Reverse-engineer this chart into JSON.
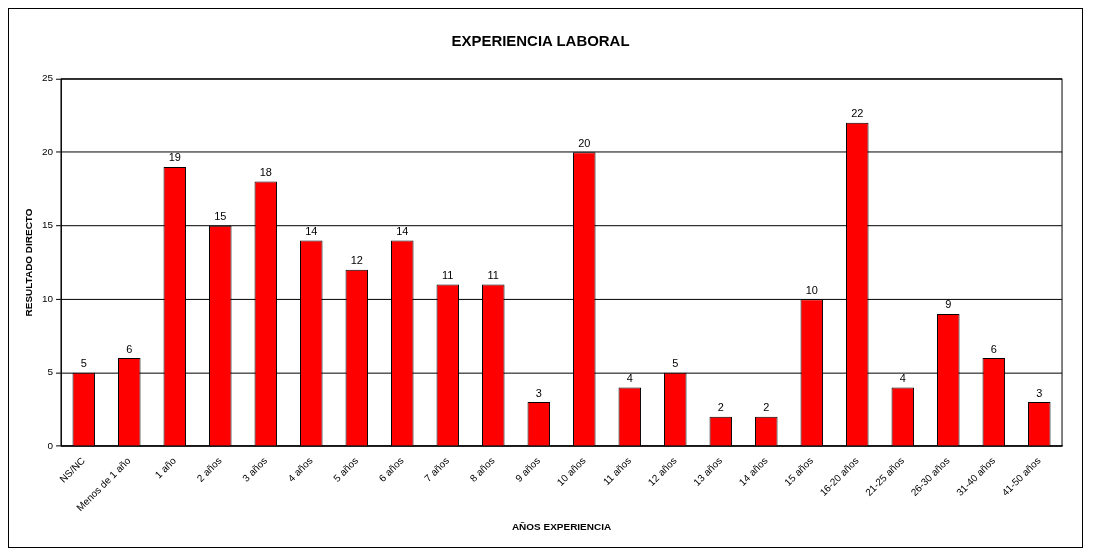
{
  "chart_data": {
    "type": "bar",
    "title": "EXPERIENCIA LABORAL",
    "xlabel": "AÑOS EXPERIENCIA",
    "ylabel": "RESULTADO DIRECTO",
    "categories": [
      "NS/NC",
      "Menos de 1 año",
      "1 año",
      "2 años",
      "3 años",
      "4 años",
      "5 años",
      "6 años",
      "7 años",
      "8 años",
      "9 años",
      "10 años",
      "11 años",
      "12 años",
      "13 años",
      "14 años",
      "15 años",
      "16-20 años",
      "21-25 años",
      "26-30 años",
      "31-40 años",
      "41-50 años"
    ],
    "values": [
      5,
      6,
      19,
      15,
      18,
      14,
      12,
      14,
      11,
      11,
      3,
      20,
      4,
      5,
      2,
      2,
      10,
      22,
      4,
      9,
      6,
      3
    ],
    "color": "#ff0000",
    "ylim": [
      0,
      25
    ],
    "yticks": [
      0,
      5,
      10,
      15,
      20,
      25
    ],
    "grid": "y",
    "data_labels": true,
    "legend": false
  }
}
